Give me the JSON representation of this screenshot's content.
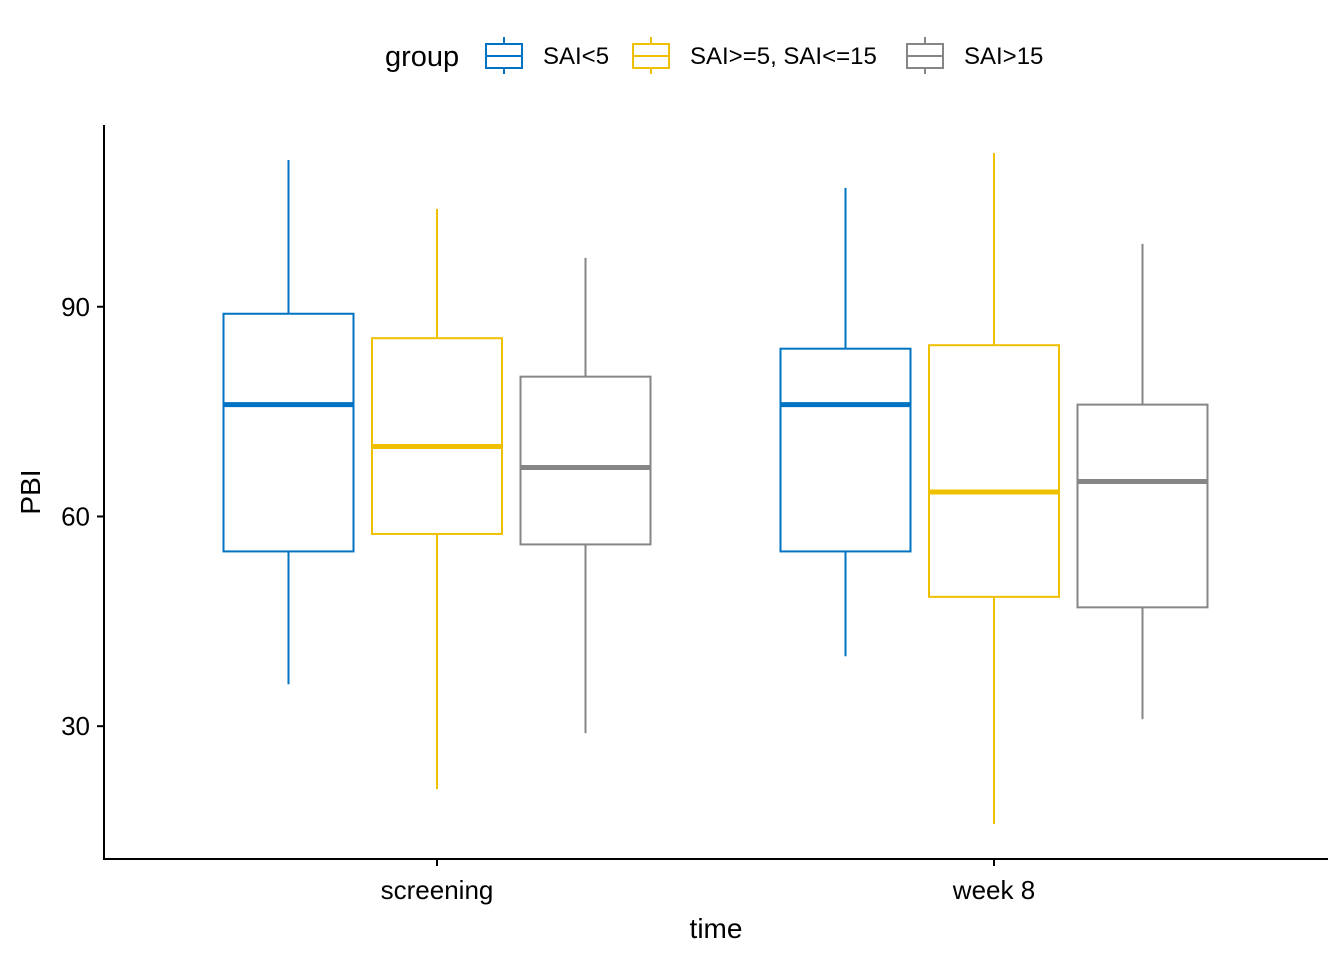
{
  "chart_data": {
    "type": "boxplot",
    "legend": {
      "title": "group",
      "position": "top"
    },
    "xlabel": "time",
    "ylabel": "PBI",
    "categories": [
      "screening",
      "week 8"
    ],
    "ylim": [
      11,
      116
    ],
    "yticks": [
      30,
      60,
      90
    ],
    "grid": false,
    "series": [
      {
        "name": "SAI<5",
        "color": "#0073C2",
        "boxes": [
          {
            "category": "screening",
            "whisker_low": 36,
            "q1": 55,
            "median": 76,
            "q3": 89,
            "whisker_high": 111
          },
          {
            "category": "week 8",
            "whisker_low": 40,
            "q1": 55,
            "median": 76,
            "q3": 84,
            "whisker_high": 107
          }
        ]
      },
      {
        "name": "SAI>=5, SAI<=15",
        "color": "#EFC000",
        "boxes": [
          {
            "category": "screening",
            "whisker_low": 21,
            "q1": 57.5,
            "median": 70,
            "q3": 85.5,
            "whisker_high": 104
          },
          {
            "category": "week 8",
            "whisker_low": 16,
            "q1": 48.5,
            "median": 63.5,
            "q3": 84.5,
            "whisker_high": 112
          }
        ]
      },
      {
        "name": "SAI>15",
        "color": "#868686",
        "boxes": [
          {
            "category": "screening",
            "whisker_low": 29,
            "q1": 56,
            "median": 67,
            "q3": 80,
            "whisker_high": 97
          },
          {
            "category": "week 8",
            "whisker_low": 31,
            "q1": 47,
            "median": 65,
            "q3": 76,
            "whisker_high": 99
          }
        ]
      }
    ]
  }
}
